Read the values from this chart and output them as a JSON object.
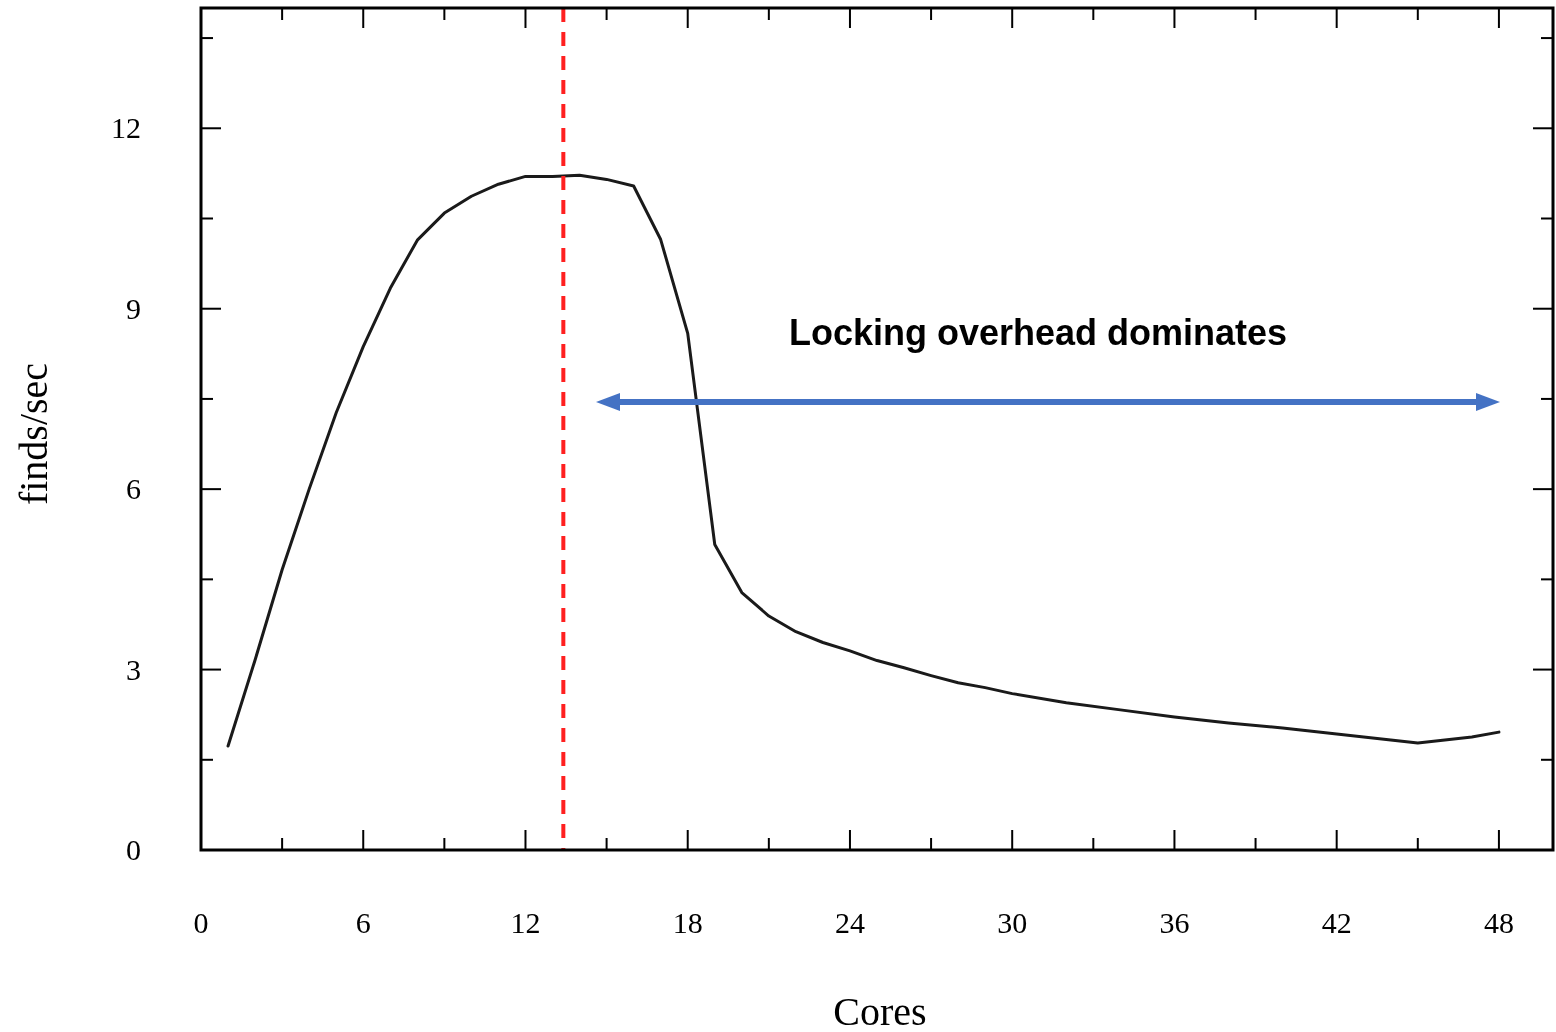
{
  "chart_data": {
    "type": "line",
    "xlabel": "Cores",
    "ylabel": "finds/sec",
    "xlim": [
      0,
      50
    ],
    "ylim": [
      0,
      14
    ],
    "xticks": [
      0,
      {
        "value": 3,
        "label": null
      },
      6,
      {
        "value": 9,
        "label": null
      },
      12,
      {
        "value": 15,
        "label": null
      },
      18,
      {
        "value": 21,
        "label": null
      },
      24,
      {
        "value": 27,
        "label": null
      },
      30,
      {
        "value": 33,
        "label": null
      },
      36,
      {
        "value": 39,
        "label": null
      },
      42,
      {
        "value": 45,
        "label": null
      },
      48
    ],
    "yticks": [
      0,
      {
        "value": 1.5,
        "label": null
      },
      3,
      {
        "value": 4.5,
        "label": null
      },
      6,
      {
        "value": 7.5,
        "label": null
      },
      9,
      {
        "value": 10.5,
        "label": null
      },
      12,
      {
        "value": 13.5,
        "label": null
      }
    ],
    "grid": false,
    "marker": "none",
    "line_style": "solid",
    "x": [
      1,
      2,
      3,
      4,
      5,
      6,
      7,
      8,
      9,
      10,
      11,
      12,
      13,
      14,
      15,
      16,
      17,
      18,
      19,
      20,
      21,
      22,
      23,
      24,
      25,
      26,
      27,
      28,
      29,
      30,
      32,
      34,
      36,
      38,
      40,
      42,
      45,
      47,
      48
    ],
    "series": [
      {
        "color": "#1a1a1a",
        "values": [
          1.73,
          3.16,
          4.66,
          6.0,
          7.27,
          8.37,
          9.34,
          10.14,
          10.59,
          10.87,
          11.07,
          11.2,
          11.2,
          11.22,
          11.15,
          11.04,
          10.15,
          8.59,
          5.08,
          4.28,
          3.89,
          3.63,
          3.45,
          3.31,
          3.15,
          3.03,
          2.9,
          2.78,
          2.7,
          2.6,
          2.45,
          2.33,
          2.21,
          2.11,
          2.03,
          1.93,
          1.78,
          1.88,
          1.96
        ]
      }
    ],
    "ref_lines": [
      {
        "axis": "x",
        "value": 13.4,
        "color": "#ff2020",
        "line_style": "dashed"
      }
    ],
    "annotations": [
      "Locking overhead dominates"
    ]
  }
}
